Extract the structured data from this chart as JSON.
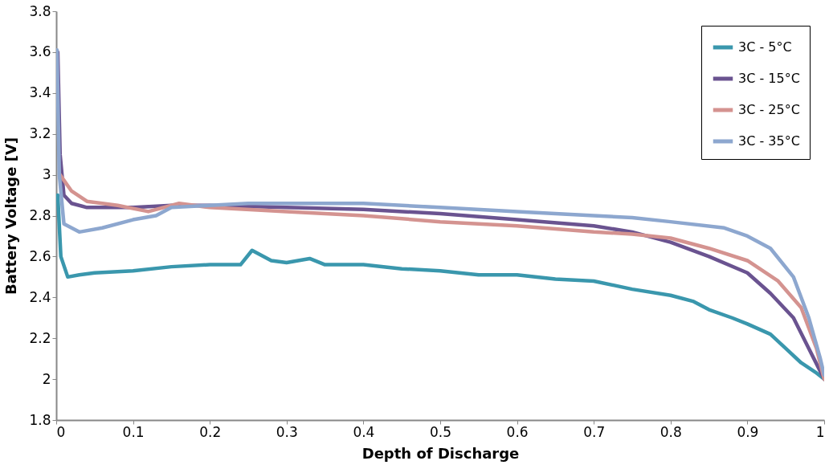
{
  "chart_data": {
    "type": "line",
    "xlabel": "Depth of Discharge",
    "ylabel": "Battery Voltage [V]",
    "xlim": [
      0,
      1
    ],
    "ylim": [
      1.8,
      3.8
    ],
    "xticks": [
      0,
      0.1,
      0.2,
      0.3,
      0.4,
      0.5,
      0.6,
      0.7,
      0.8,
      0.9,
      1
    ],
    "yticks": [
      1.8,
      2,
      2.2,
      2.4,
      2.6,
      2.8,
      3,
      3.2,
      3.4,
      3.6,
      3.8
    ],
    "grid": false,
    "legend": "top right",
    "marker": "none",
    "line_style": "solid",
    "series": [
      {
        "name": "3C - 5°C",
        "color": "#3a97ad",
        "x": [
          0.002,
          0.006,
          0.015,
          0.03,
          0.05,
          0.1,
          0.15,
          0.2,
          0.24,
          0.255,
          0.28,
          0.3,
          0.33,
          0.35,
          0.4,
          0.45,
          0.5,
          0.55,
          0.6,
          0.65,
          0.7,
          0.75,
          0.8,
          0.83,
          0.85,
          0.88,
          0.9,
          0.93,
          0.95,
          0.97,
          0.99,
          1.0
        ],
        "values": [
          2.9,
          2.6,
          2.5,
          2.51,
          2.52,
          2.53,
          2.55,
          2.56,
          2.56,
          2.63,
          2.58,
          2.57,
          2.59,
          2.56,
          2.56,
          2.54,
          2.53,
          2.51,
          2.51,
          2.49,
          2.48,
          2.44,
          2.41,
          2.38,
          2.34,
          2.3,
          2.27,
          2.22,
          2.15,
          2.08,
          2.03,
          2.0
        ]
      },
      {
        "name": "3C - 15°C",
        "color": "#6a5390",
        "x": [
          0.002,
          0.005,
          0.01,
          0.02,
          0.04,
          0.1,
          0.15,
          0.2,
          0.3,
          0.4,
          0.5,
          0.6,
          0.7,
          0.75,
          0.8,
          0.85,
          0.9,
          0.93,
          0.96,
          0.98,
          1.0
        ],
        "values": [
          3.6,
          3.1,
          2.9,
          2.86,
          2.84,
          2.84,
          2.85,
          2.85,
          2.84,
          2.83,
          2.81,
          2.78,
          2.75,
          2.72,
          2.67,
          2.6,
          2.52,
          2.42,
          2.3,
          2.15,
          2.0
        ]
      },
      {
        "name": "3C - 25°C",
        "color": "#d49390",
        "x": [
          0.005,
          0.02,
          0.04,
          0.08,
          0.12,
          0.16,
          0.2,
          0.3,
          0.4,
          0.5,
          0.6,
          0.7,
          0.75,
          0.8,
          0.85,
          0.9,
          0.94,
          0.97,
          0.99,
          1.0
        ],
        "values": [
          3.0,
          2.92,
          2.87,
          2.85,
          2.82,
          2.86,
          2.84,
          2.82,
          2.8,
          2.77,
          2.75,
          2.72,
          2.71,
          2.69,
          2.64,
          2.58,
          2.48,
          2.35,
          2.15,
          2.0
        ]
      },
      {
        "name": "3C - 35°C",
        "color": "#8da7cf",
        "x": [
          0.001,
          0.004,
          0.01,
          0.03,
          0.06,
          0.1,
          0.13,
          0.15,
          0.2,
          0.25,
          0.4,
          0.5,
          0.6,
          0.7,
          0.75,
          0.8,
          0.87,
          0.9,
          0.93,
          0.96,
          0.98,
          0.995,
          1.0
        ],
        "values": [
          3.61,
          3.0,
          2.76,
          2.72,
          2.74,
          2.78,
          2.8,
          2.84,
          2.85,
          2.86,
          2.86,
          2.84,
          2.82,
          2.8,
          2.79,
          2.77,
          2.74,
          2.7,
          2.64,
          2.5,
          2.3,
          2.1,
          2.02
        ]
      }
    ]
  }
}
